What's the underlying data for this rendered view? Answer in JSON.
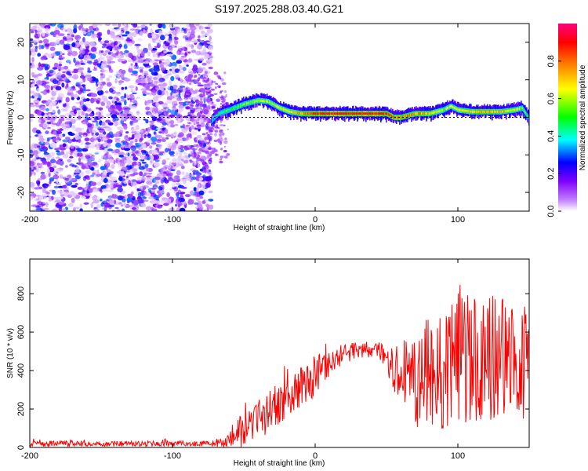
{
  "figure": {
    "title": "S197.2025.288.03.40.G21"
  },
  "chart_data": [
    {
      "id": "spectrogram",
      "type": "heatmap",
      "title": "S197.2025.288.03.40.G21",
      "xlabel": "Height of straight line (km)",
      "ylabel": "Frequency (Hz)",
      "xlim": [
        -200,
        150
      ],
      "ylim": [
        -25,
        25
      ],
      "xticks": [
        -200,
        -100,
        0,
        100
      ],
      "yticks": [
        -20,
        -10,
        0,
        10,
        20
      ],
      "noise_region_x": [
        -200,
        -73
      ],
      "ridge": {
        "x": [
          -73,
          -68,
          -60,
          -50,
          -40,
          -33,
          -25,
          -18,
          -10,
          0,
          10,
          20,
          30,
          40,
          50,
          55,
          60,
          70,
          80,
          90,
          95,
          100,
          110,
          120,
          130,
          140,
          145,
          150
        ],
        "freq": [
          -1,
          1,
          2,
          3.5,
          4.5,
          4.2,
          2.5,
          1.5,
          1,
          1,
          1,
          1,
          1,
          1,
          1,
          0,
          0,
          1,
          1,
          2,
          3,
          2,
          1.5,
          1.5,
          1.5,
          2,
          2.5,
          -0.5
        ],
        "amplitude": [
          0.3,
          0.45,
          0.5,
          0.55,
          0.6,
          0.6,
          0.65,
          0.7,
          0.75,
          0.85,
          0.9,
          0.9,
          0.9,
          0.9,
          0.85,
          0.8,
          0.8,
          0.75,
          0.7,
          0.6,
          0.6,
          0.65,
          0.7,
          0.75,
          0.7,
          0.65,
          0.55,
          0.4
        ]
      },
      "colorbar": {
        "label": "Normalized spectral amplitude",
        "range": [
          0.0,
          1.0
        ],
        "ticks": [
          "0.0",
          "0.2",
          "0.4",
          "0.6",
          "0.8"
        ],
        "tick_values": [
          0.0,
          0.2,
          0.4,
          0.6,
          0.8
        ],
        "colors": [
          "#ffffff",
          "#c080ff",
          "#8000ff",
          "#0000ff",
          "#00ffff",
          "#00ff00",
          "#ffff00",
          "#ff8000",
          "#ff0000",
          "#ff0080"
        ]
      }
    },
    {
      "id": "snr",
      "type": "line",
      "xlabel": "Height of straight line (km)",
      "ylabel": "SNR (10 * v/v)",
      "xlim": [
        -200,
        150
      ],
      "ylim": [
        0,
        980
      ],
      "xticks": [
        -200,
        -100,
        0,
        100
      ],
      "yticks": [
        0,
        200,
        400,
        600,
        800
      ],
      "color": "#ff0000",
      "envelope": {
        "x": [
          -200,
          -120,
          -75,
          -62,
          -55,
          -45,
          -35,
          -25,
          -15,
          -5,
          0,
          5,
          15,
          25,
          35,
          45,
          50,
          55,
          60,
          65,
          70,
          75,
          80,
          90,
          100,
          110,
          120,
          130,
          140,
          150
        ],
        "mid": [
          20,
          20,
          20,
          25,
          80,
          120,
          170,
          230,
          290,
          330,
          380,
          420,
          470,
          500,
          510,
          500,
          470,
          420,
          380,
          360,
          350,
          360,
          380,
          420,
          470,
          450,
          460,
          470,
          460,
          450
        ],
        "amp": [
          15,
          15,
          15,
          30,
          90,
          100,
          110,
          110,
          110,
          100,
          110,
          90,
          60,
          50,
          40,
          50,
          80,
          120,
          180,
          220,
          250,
          280,
          300,
          320,
          350,
          340,
          330,
          320,
          320,
          300
        ]
      }
    }
  ]
}
